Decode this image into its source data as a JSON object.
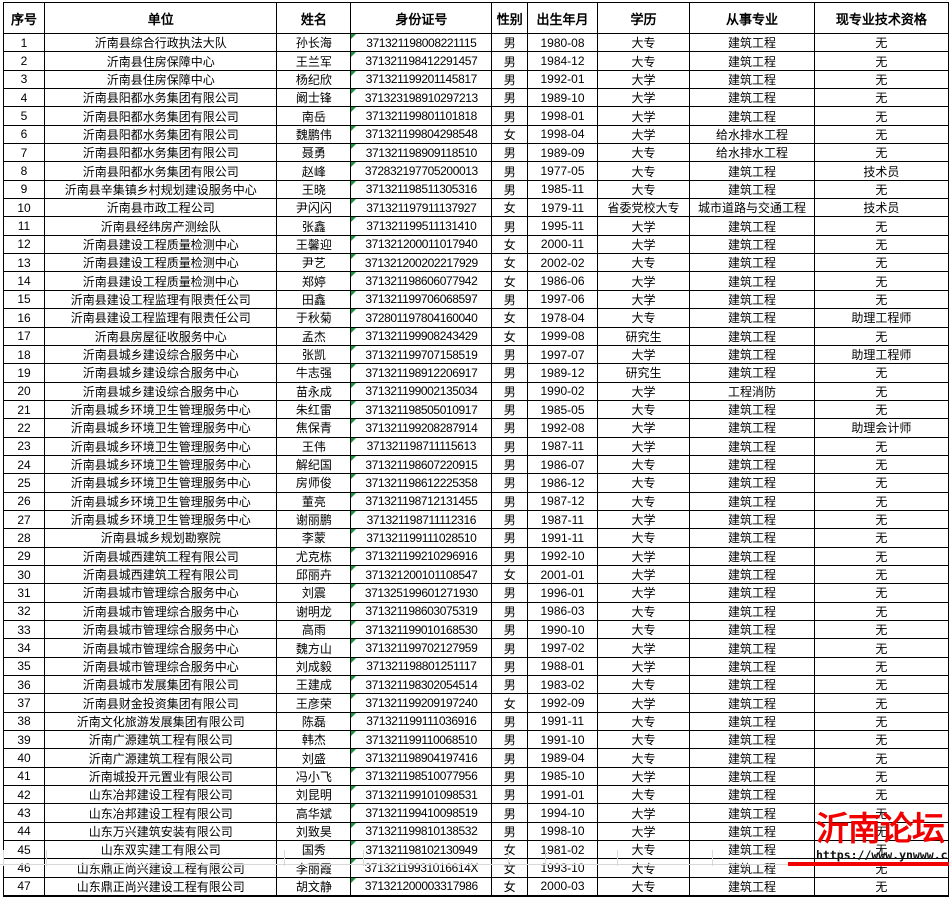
{
  "table": {
    "headers": [
      "序号",
      "单位",
      "姓名",
      "身份证号",
      "性别",
      "出生年月",
      "学历",
      "从事专业",
      "现专业技术资格"
    ],
    "rows": [
      [
        "1",
        "沂南县综合行政执法大队",
        "孙长海",
        "371321198008221115",
        "男",
        "1980-08",
        "大专",
        "建筑工程",
        "无"
      ],
      [
        "2",
        "沂南县住房保障中心",
        "王兰军",
        "371321198412291457",
        "男",
        "1984-12",
        "大专",
        "建筑工程",
        "无"
      ],
      [
        "3",
        "沂南县住房保障中心",
        "杨纪欣",
        "371321199201145817",
        "男",
        "1992-01",
        "大学",
        "建筑工程",
        "无"
      ],
      [
        "4",
        "沂南县阳都水务集团有限公司",
        "阚士锋",
        "371323198910297213",
        "男",
        "1989-10",
        "大学",
        "建筑工程",
        "无"
      ],
      [
        "5",
        "沂南县阳都水务集团有限公司",
        "南岳",
        "371321199801101818",
        "男",
        "1998-01",
        "大学",
        "建筑工程",
        "无"
      ],
      [
        "6",
        "沂南县阳都水务集团有限公司",
        "魏鹏伟",
        "371321199804298548",
        "女",
        "1998-04",
        "大学",
        "给水排水工程",
        "无"
      ],
      [
        "7",
        "沂南县阳都水务集团有限公司",
        "聂勇",
        "371321198909118510",
        "男",
        "1989-09",
        "大专",
        "给水排水工程",
        "无"
      ],
      [
        "8",
        "沂南县阳都水务集团有限公司",
        "赵峰",
        "372832197705200013",
        "男",
        "1977-05",
        "大专",
        "建筑工程",
        "技术员"
      ],
      [
        "9",
        "沂南县辛集镇乡村规划建设服务中心",
        "王晓",
        "371321198511305316",
        "男",
        "1985-11",
        "大专",
        "建筑工程",
        "无"
      ],
      [
        "10",
        "沂南县市政工程公司",
        "尹闪闪",
        "371321197911137927",
        "女",
        "1979-11",
        "省委党校大专",
        "城市道路与交通工程",
        "技术员"
      ],
      [
        "11",
        "沂南县经纬房产测绘队",
        "张鑫",
        "371321199511131410",
        "男",
        "1995-11",
        "大学",
        "建筑工程",
        "无"
      ],
      [
        "12",
        "沂南县建设工程质量检测中心",
        "王馨迎",
        "371321200011017940",
        "女",
        "2000-11",
        "大学",
        "建筑工程",
        "无"
      ],
      [
        "13",
        "沂南县建设工程质量检测中心",
        "尹艺",
        "371321200202217929",
        "女",
        "2002-02",
        "大专",
        "建筑工程",
        "无"
      ],
      [
        "14",
        "沂南县建设工程质量检测中心",
        "郑婷",
        "371321198606077942",
        "女",
        "1986-06",
        "大学",
        "建筑工程",
        "无"
      ],
      [
        "15",
        "沂南县建设工程监理有限责任公司",
        "田鑫",
        "371321199706068597",
        "男",
        "1997-06",
        "大学",
        "建筑工程",
        "无"
      ],
      [
        "16",
        "沂南县建设工程监理有限责任公司",
        "于秋菊",
        "372801197804160040",
        "女",
        "1978-04",
        "大专",
        "建筑工程",
        "助理工程师"
      ],
      [
        "17",
        "沂南县房屋征收服务中心",
        "孟杰",
        "371321199908243429",
        "女",
        "1999-08",
        "研究生",
        "建筑工程",
        "无"
      ],
      [
        "18",
        "沂南县城乡建设综合服务中心",
        "张凯",
        "371321199707158519",
        "男",
        "1997-07",
        "大学",
        "建筑工程",
        "助理工程师"
      ],
      [
        "19",
        "沂南县城乡建设综合服务中心",
        "牛志强",
        "371321198912206917",
        "男",
        "1989-12",
        "研究生",
        "建筑工程",
        "无"
      ],
      [
        "20",
        "沂南县城乡建设综合服务中心",
        "苗永成",
        "371321199002135034",
        "男",
        "1990-02",
        "大学",
        "工程消防",
        "无"
      ],
      [
        "21",
        "沂南县城乡环境卫生管理服务中心",
        "朱红雷",
        "371321198505010917",
        "男",
        "1985-05",
        "大专",
        "建筑工程",
        "无"
      ],
      [
        "22",
        "沂南县城乡环境卫生管理服务中心",
        "焦保青",
        "371321199208287914",
        "男",
        "1992-08",
        "大学",
        "建筑工程",
        "助理会计师"
      ],
      [
        "23",
        "沂南县城乡环境卫生管理服务中心",
        "王伟",
        "371321198711115613",
        "男",
        "1987-11",
        "大学",
        "建筑工程",
        "无"
      ],
      [
        "24",
        "沂南县城乡环境卫生管理服务中心",
        "解纪国",
        "371321198607220915",
        "男",
        "1986-07",
        "大专",
        "建筑工程",
        "无"
      ],
      [
        "25",
        "沂南县城乡环境卫生管理服务中心",
        "房师俊",
        "371321198612225358",
        "男",
        "1986-12",
        "大专",
        "建筑工程",
        "无"
      ],
      [
        "26",
        "沂南县城乡环境卫生管理服务中心",
        "董亮",
        "371321198712131455",
        "男",
        "1987-12",
        "大专",
        "建筑工程",
        "无"
      ],
      [
        "27",
        "沂南县城乡环境卫生管理服务中心",
        "谢丽鹏",
        "371321198711112316",
        "男",
        "1987-11",
        "大学",
        "建筑工程",
        "无"
      ],
      [
        "28",
        "沂南县城乡规划勘察院",
        "李蒙",
        "371321199111028510",
        "男",
        "1991-11",
        "大专",
        "建筑工程",
        "无"
      ],
      [
        "29",
        "沂南县城西建筑工程有限公司",
        "尤克栋",
        "371321199210296916",
        "男",
        "1992-10",
        "大学",
        "建筑工程",
        "无"
      ],
      [
        "30",
        "沂南县城西建筑工程有限公司",
        "邱丽卉",
        "371321200101108547",
        "女",
        "2001-01",
        "大学",
        "建筑工程",
        "无"
      ],
      [
        "31",
        "沂南县城市管理综合服务中心",
        "刘震",
        "371325199601271930",
        "男",
        "1996-01",
        "大学",
        "建筑工程",
        "无"
      ],
      [
        "32",
        "沂南县城市管理综合服务中心",
        "谢明龙",
        "371321198603075319",
        "男",
        "1986-03",
        "大专",
        "建筑工程",
        "无"
      ],
      [
        "33",
        "沂南县城市管理综合服务中心",
        "高雨",
        "371321199010168530",
        "男",
        "1990-10",
        "大专",
        "建筑工程",
        "无"
      ],
      [
        "34",
        "沂南县城市管理综合服务中心",
        "魏方山",
        "371321199702127959",
        "男",
        "1997-02",
        "大学",
        "建筑工程",
        "无"
      ],
      [
        "35",
        "沂南县城市管理综合服务中心",
        "刘成毅",
        "371321198801251117",
        "男",
        "1988-01",
        "大学",
        "建筑工程",
        "无"
      ],
      [
        "36",
        "沂南县城市发展集团有限公司",
        "王建成",
        "371321198302054514",
        "男",
        "1983-02",
        "大专",
        "建筑工程",
        "无"
      ],
      [
        "37",
        "沂南县财金投资集团有限公司",
        "王彦荣",
        "371321199209197240",
        "女",
        "1992-09",
        "大学",
        "建筑工程",
        "无"
      ],
      [
        "38",
        "沂南文化旅游发展集团有限公司",
        "陈磊",
        "371321199111036916",
        "男",
        "1991-11",
        "大专",
        "建筑工程",
        "无"
      ],
      [
        "39",
        "沂南广源建筑工程有限公司",
        "韩杰",
        "371321199110068510",
        "男",
        "1991-10",
        "大专",
        "建筑工程",
        "无"
      ],
      [
        "40",
        "沂南广源建筑工程有限公司",
        "刘盛",
        "371321198904197416",
        "男",
        "1989-04",
        "大专",
        "建筑工程",
        "无"
      ],
      [
        "41",
        "沂南城投开元置业有限公司",
        "冯小飞",
        "371321198510077956",
        "男",
        "1985-10",
        "大学",
        "建筑工程",
        "无"
      ],
      [
        "42",
        "山东冶邦建设工程有限公司",
        "刘昆明",
        "371321199101098531",
        "男",
        "1991-01",
        "大专",
        "建筑工程",
        "无"
      ],
      [
        "43",
        "山东冶邦建设工程有限公司",
        "高华斌",
        "371321199410098519",
        "男",
        "1994-10",
        "大学",
        "建筑工程",
        "无"
      ],
      [
        "44",
        "山东万兴建筑安装有限公司",
        "刘致昊",
        "371321199810138532",
        "男",
        "1998-10",
        "大学",
        "建筑工程",
        "无"
      ],
      [
        "45",
        "山东双实建工有限公司",
        "国秀",
        "371321198102130949",
        "女",
        "1981-02",
        "大专",
        "建筑工程",
        "无"
      ],
      [
        "46",
        "山东鼎正尚兴建设工程有限公司",
        "李丽霞",
        "37132119931016614X",
        "女",
        "1993-10",
        "大专",
        "建筑工程",
        "无"
      ],
      [
        "47",
        "山东鼎正尚兴建设工程有限公司",
        "胡文静",
        "371321200003317986",
        "女",
        "2000-03",
        "大专",
        "建筑工程",
        "无"
      ]
    ]
  },
  "watermark": {
    "title": "沂南论坛",
    "url": "https://www.ynwww.cn"
  },
  "colors": {
    "watermark_red": "#f20000",
    "id_flag_green": "#18953c",
    "grid_border": "#000000",
    "faint_grid": "#d8d8d8"
  }
}
